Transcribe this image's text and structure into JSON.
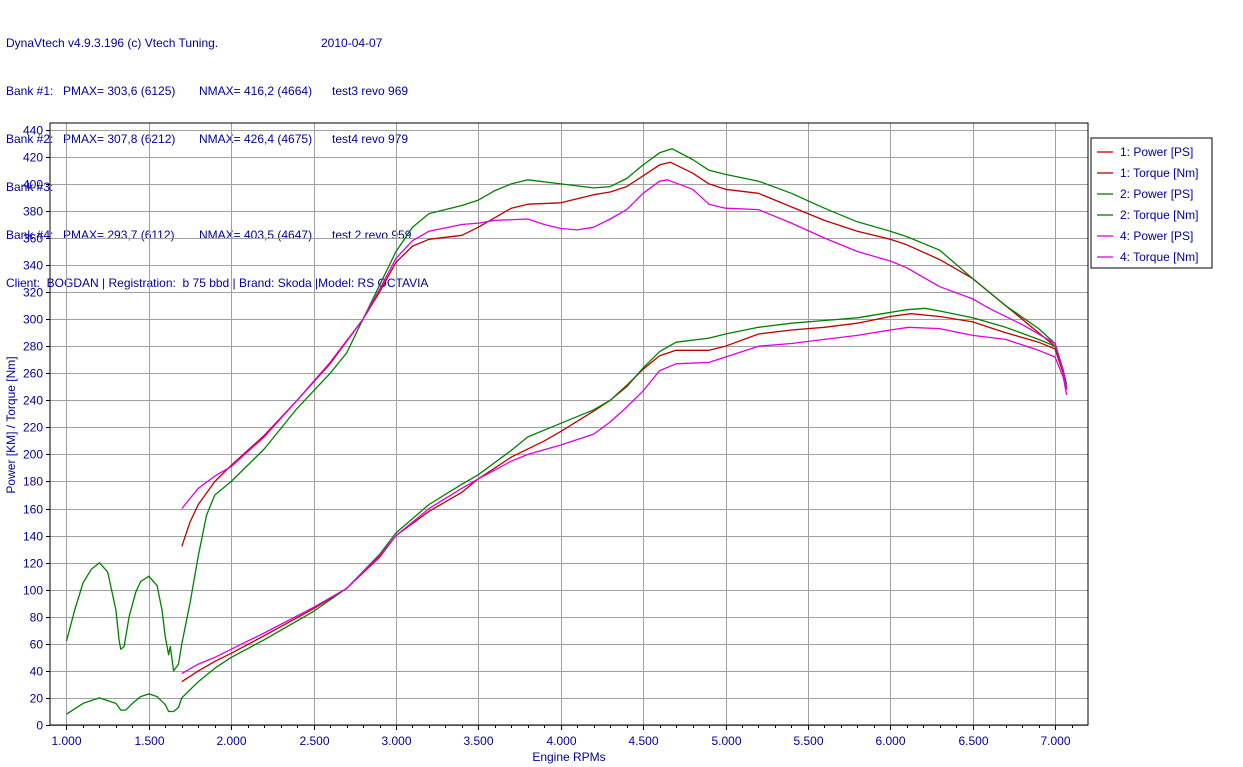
{
  "header": {
    "app_title": "DynaVtech v4.9.3.196 (c) Vtech Tuning.",
    "date": "2010-04-07",
    "banks": [
      {
        "label": "Bank #1:",
        "pmax": "PMAX= 303,6 (6125)",
        "nmax": "NMAX= 416,2 (4664)",
        "note": "test3 revo 969"
      },
      {
        "label": "Bank #2:",
        "pmax": "PMAX= 307,8 (6212)",
        "nmax": "NMAX= 426,4 (4675)",
        "note": "test4 revo 979"
      },
      {
        "label": "Bank #3:",
        "pmax": "",
        "nmax": "",
        "note": ""
      },
      {
        "label": "Bank #4:",
        "pmax": "PMAX= 293,7 (6112)",
        "nmax": "NMAX= 403,5 (4647)",
        "note": "test 2 revo 959"
      }
    ],
    "client_line": "Client:  BOGDAN | Registration:  b 75 bbd | Brand: Skoda |Model: RS OCTAVIA"
  },
  "colors": {
    "bank1": "#c00000",
    "bank2": "#008000",
    "bank4": "#e000e0",
    "grid": "#a0a0a0",
    "text": "#00009c"
  },
  "chart_data": {
    "type": "line",
    "xlabel": "Engine RPMs",
    "ylabel": "Power [KM] / Torque [Nm]",
    "xlim": [
      900,
      7200
    ],
    "ylim": [
      0,
      445
    ],
    "x_ticks": [
      1000,
      1500,
      2000,
      2500,
      3000,
      3500,
      4000,
      4500,
      5000,
      5500,
      6000,
      6500,
      7000
    ],
    "x_tick_labels": [
      "1.000",
      "1.500",
      "2.000",
      "2.500",
      "3.000",
      "3.500",
      "4.000",
      "4.500",
      "5.000",
      "5.500",
      "6.000",
      "6.500",
      "7.000"
    ],
    "y_ticks": [
      0,
      20,
      40,
      60,
      80,
      100,
      120,
      140,
      160,
      180,
      200,
      220,
      240,
      260,
      280,
      300,
      320,
      340,
      360,
      380,
      400,
      420,
      440
    ],
    "y_tick_labels": [
      "0",
      "20",
      "40",
      "60",
      "80",
      "100",
      "120",
      "140",
      "160",
      "180",
      "200",
      "220",
      "240",
      "260",
      "280",
      "300",
      "320",
      "340",
      "360",
      "380",
      "400",
      "420",
      "440"
    ],
    "grid": true,
    "legend_position": "top-right",
    "series": [
      {
        "name": "1: Power [PS]",
        "color_key": "bank1",
        "points": [
          [
            1700,
            32
          ],
          [
            1800,
            40
          ],
          [
            1900,
            47
          ],
          [
            2000,
            53
          ],
          [
            2200,
            66
          ],
          [
            2500,
            86
          ],
          [
            2700,
            101
          ],
          [
            2900,
            124
          ],
          [
            3000,
            140
          ],
          [
            3200,
            158
          ],
          [
            3400,
            172
          ],
          [
            3500,
            182
          ],
          [
            3700,
            198
          ],
          [
            3900,
            210
          ],
          [
            4000,
            217
          ],
          [
            4200,
            232
          ],
          [
            4300,
            240
          ],
          [
            4400,
            251
          ],
          [
            4500,
            263
          ],
          [
            4600,
            273
          ],
          [
            4700,
            277
          ],
          [
            4900,
            277
          ],
          [
            5000,
            280
          ],
          [
            5200,
            289
          ],
          [
            5400,
            292
          ],
          [
            5600,
            294
          ],
          [
            5800,
            297
          ],
          [
            6000,
            302
          ],
          [
            6125,
            304
          ],
          [
            6300,
            302
          ],
          [
            6500,
            298
          ],
          [
            6700,
            290
          ],
          [
            6900,
            283
          ],
          [
            7000,
            278
          ],
          [
            7050,
            260
          ],
          [
            7070,
            248
          ]
        ]
      },
      {
        "name": "1: Torque [Nm]",
        "color_key": "bank1",
        "points": [
          [
            1700,
            132
          ],
          [
            1750,
            150
          ],
          [
            1800,
            163
          ],
          [
            1900,
            180
          ],
          [
            2000,
            192
          ],
          [
            2200,
            214
          ],
          [
            2400,
            240
          ],
          [
            2600,
            267
          ],
          [
            2800,
            300
          ],
          [
            2900,
            320
          ],
          [
            3000,
            342
          ],
          [
            3100,
            354
          ],
          [
            3200,
            359
          ],
          [
            3400,
            362
          ],
          [
            3500,
            368
          ],
          [
            3700,
            382
          ],
          [
            3800,
            385
          ],
          [
            4000,
            386
          ],
          [
            4200,
            392
          ],
          [
            4300,
            394
          ],
          [
            4400,
            398
          ],
          [
            4500,
            406
          ],
          [
            4600,
            414
          ],
          [
            4664,
            416
          ],
          [
            4800,
            408
          ],
          [
            4900,
            400
          ],
          [
            5000,
            396
          ],
          [
            5200,
            393
          ],
          [
            5400,
            383
          ],
          [
            5600,
            373
          ],
          [
            5800,
            365
          ],
          [
            6000,
            359
          ],
          [
            6100,
            355
          ],
          [
            6300,
            344
          ],
          [
            6500,
            330
          ],
          [
            6700,
            310
          ],
          [
            6900,
            290
          ],
          [
            7000,
            280
          ],
          [
            7050,
            260
          ],
          [
            7070,
            250
          ]
        ]
      },
      {
        "name": "2: Power [PS]",
        "color_key": "bank2",
        "points": [
          [
            1000,
            8
          ],
          [
            1100,
            16
          ],
          [
            1200,
            20
          ],
          [
            1300,
            16
          ],
          [
            1330,
            11
          ],
          [
            1360,
            11
          ],
          [
            1400,
            16
          ],
          [
            1450,
            21
          ],
          [
            1500,
            23
          ],
          [
            1550,
            21
          ],
          [
            1600,
            15
          ],
          [
            1620,
            10
          ],
          [
            1650,
            10
          ],
          [
            1680,
            13
          ],
          [
            1700,
            20
          ],
          [
            1800,
            32
          ],
          [
            1900,
            42
          ],
          [
            2000,
            50
          ],
          [
            2200,
            63
          ],
          [
            2500,
            84
          ],
          [
            2700,
            101
          ],
          [
            2900,
            126
          ],
          [
            3000,
            142
          ],
          [
            3200,
            163
          ],
          [
            3400,
            178
          ],
          [
            3500,
            185
          ],
          [
            3700,
            203
          ],
          [
            3800,
            213
          ],
          [
            4000,
            223
          ],
          [
            4200,
            233
          ],
          [
            4300,
            240
          ],
          [
            4400,
            250
          ],
          [
            4500,
            264
          ],
          [
            4600,
            276
          ],
          [
            4700,
            283
          ],
          [
            4900,
            286
          ],
          [
            5000,
            289
          ],
          [
            5200,
            294
          ],
          [
            5400,
            297
          ],
          [
            5600,
            299
          ],
          [
            5800,
            301
          ],
          [
            6000,
            305
          ],
          [
            6100,
            307
          ],
          [
            6212,
            308
          ],
          [
            6300,
            306
          ],
          [
            6500,
            301
          ],
          [
            6700,
            294
          ],
          [
            6900,
            285
          ],
          [
            7000,
            280
          ],
          [
            7050,
            262
          ],
          [
            7070,
            252
          ]
        ]
      },
      {
        "name": "2: Torque [Nm]",
        "color_key": "bank2",
        "points": [
          [
            1000,
            62
          ],
          [
            1050,
            85
          ],
          [
            1100,
            105
          ],
          [
            1150,
            115
          ],
          [
            1200,
            120
          ],
          [
            1250,
            113
          ],
          [
            1300,
            85
          ],
          [
            1320,
            62
          ],
          [
            1330,
            56
          ],
          [
            1350,
            58
          ],
          [
            1380,
            80
          ],
          [
            1420,
            98
          ],
          [
            1450,
            106
          ],
          [
            1500,
            110
          ],
          [
            1550,
            103
          ],
          [
            1580,
            85
          ],
          [
            1600,
            65
          ],
          [
            1620,
            52
          ],
          [
            1630,
            58
          ],
          [
            1650,
            40
          ],
          [
            1680,
            45
          ],
          [
            1700,
            60
          ],
          [
            1750,
            90
          ],
          [
            1800,
            125
          ],
          [
            1850,
            155
          ],
          [
            1900,
            170
          ],
          [
            2000,
            180
          ],
          [
            2200,
            204
          ],
          [
            2400,
            234
          ],
          [
            2600,
            260
          ],
          [
            2700,
            275
          ],
          [
            2800,
            300
          ],
          [
            2900,
            325
          ],
          [
            3000,
            350
          ],
          [
            3100,
            368
          ],
          [
            3200,
            378
          ],
          [
            3400,
            384
          ],
          [
            3500,
            388
          ],
          [
            3600,
            395
          ],
          [
            3700,
            400
          ],
          [
            3800,
            403
          ],
          [
            4000,
            400
          ],
          [
            4200,
            397
          ],
          [
            4300,
            398
          ],
          [
            4400,
            404
          ],
          [
            4500,
            414
          ],
          [
            4600,
            423
          ],
          [
            4675,
            426
          ],
          [
            4800,
            418
          ],
          [
            4900,
            410
          ],
          [
            5000,
            407
          ],
          [
            5200,
            402
          ],
          [
            5400,
            393
          ],
          [
            5600,
            382
          ],
          [
            5800,
            372
          ],
          [
            6000,
            365
          ],
          [
            6100,
            361
          ],
          [
            6300,
            351
          ],
          [
            6500,
            330
          ],
          [
            6700,
            310
          ],
          [
            6900,
            293
          ],
          [
            7000,
            282
          ],
          [
            7050,
            262
          ],
          [
            7070,
            248
          ]
        ]
      },
      {
        "name": "4: Power [PS]",
        "color_key": "bank4",
        "points": [
          [
            1700,
            38
          ],
          [
            1800,
            45
          ],
          [
            1900,
            50
          ],
          [
            2000,
            56
          ],
          [
            2200,
            68
          ],
          [
            2500,
            87
          ],
          [
            2700,
            101
          ],
          [
            2900,
            125
          ],
          [
            3000,
            140
          ],
          [
            3200,
            160
          ],
          [
            3400,
            175
          ],
          [
            3500,
            182
          ],
          [
            3700,
            195
          ],
          [
            3800,
            200
          ],
          [
            4000,
            207
          ],
          [
            4200,
            215
          ],
          [
            4300,
            224
          ],
          [
            4400,
            235
          ],
          [
            4500,
            247
          ],
          [
            4600,
            262
          ],
          [
            4700,
            267
          ],
          [
            4900,
            268
          ],
          [
            5000,
            272
          ],
          [
            5200,
            280
          ],
          [
            5400,
            282
          ],
          [
            5600,
            285
          ],
          [
            5800,
            288
          ],
          [
            6000,
            292
          ],
          [
            6112,
            294
          ],
          [
            6300,
            293
          ],
          [
            6500,
            288
          ],
          [
            6700,
            285
          ],
          [
            6900,
            277
          ],
          [
            7000,
            272
          ],
          [
            7050,
            257
          ],
          [
            7070,
            244
          ]
        ]
      },
      {
        "name": "4: Torque [Nm]",
        "color_key": "bank4",
        "points": [
          [
            1700,
            160
          ],
          [
            1800,
            175
          ],
          [
            1900,
            184
          ],
          [
            2000,
            191
          ],
          [
            2200,
            213
          ],
          [
            2400,
            240
          ],
          [
            2600,
            268
          ],
          [
            2800,
            300
          ],
          [
            2900,
            322
          ],
          [
            3000,
            345
          ],
          [
            3100,
            358
          ],
          [
            3200,
            365
          ],
          [
            3400,
            370
          ],
          [
            3500,
            371
          ],
          [
            3600,
            373
          ],
          [
            3800,
            374
          ],
          [
            3900,
            370
          ],
          [
            4000,
            367
          ],
          [
            4100,
            366
          ],
          [
            4200,
            368
          ],
          [
            4300,
            374
          ],
          [
            4400,
            381
          ],
          [
            4500,
            393
          ],
          [
            4600,
            402
          ],
          [
            4647,
            403
          ],
          [
            4800,
            396
          ],
          [
            4900,
            385
          ],
          [
            5000,
            382
          ],
          [
            5200,
            381
          ],
          [
            5400,
            371
          ],
          [
            5600,
            360
          ],
          [
            5800,
            350
          ],
          [
            6000,
            343
          ],
          [
            6100,
            338
          ],
          [
            6300,
            324
          ],
          [
            6500,
            315
          ],
          [
            6600,
            308
          ],
          [
            6800,
            296
          ],
          [
            7000,
            282
          ],
          [
            7050,
            262
          ],
          [
            7070,
            248
          ]
        ]
      }
    ]
  }
}
